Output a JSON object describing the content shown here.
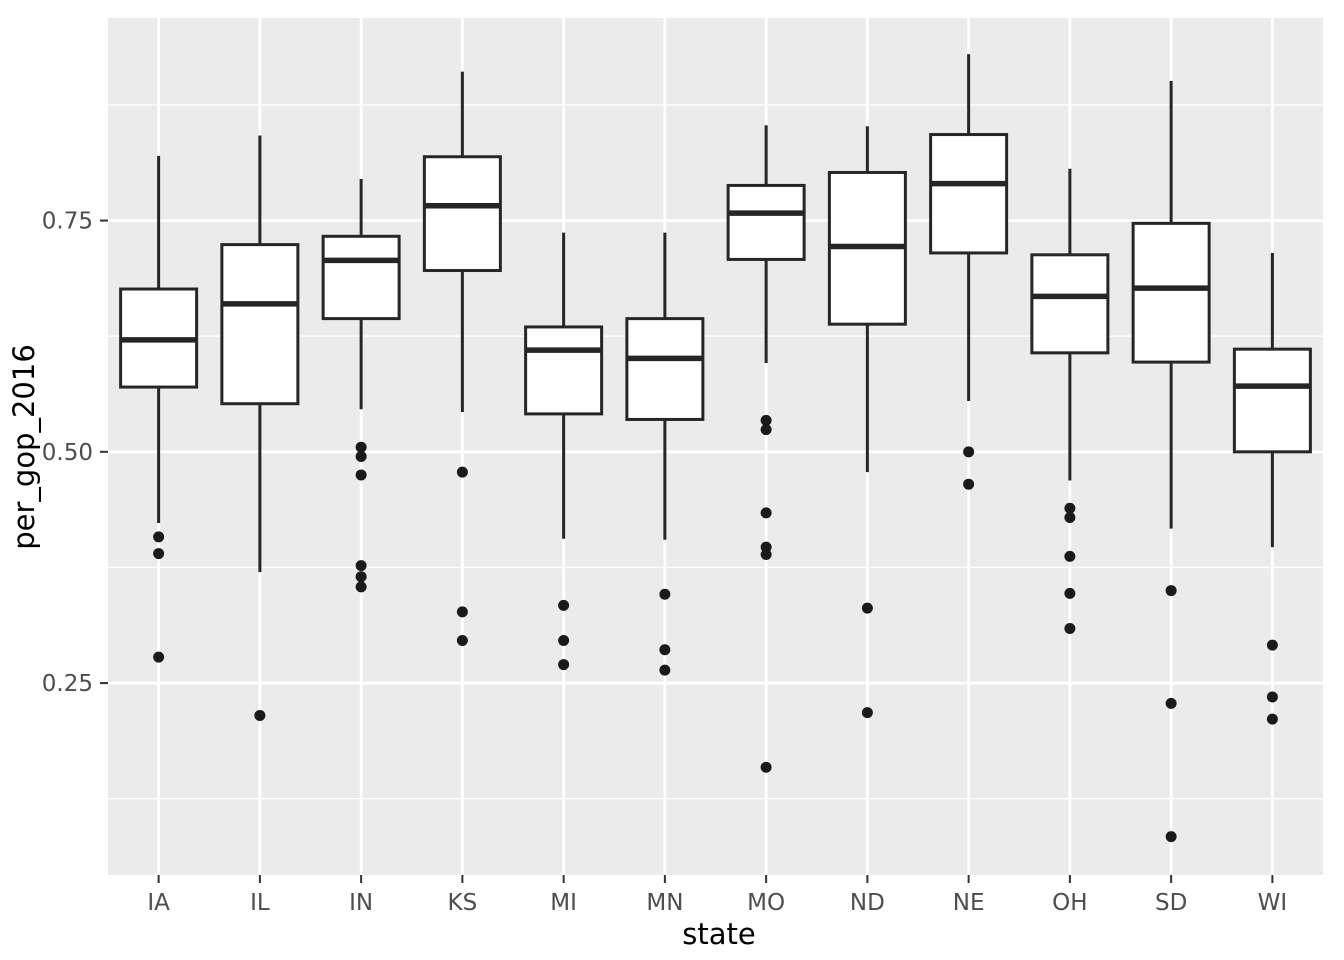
{
  "chart_data": {
    "type": "boxplot",
    "title": "",
    "xlabel": "state",
    "ylabel": "per_gop_2016",
    "categories": [
      "IA",
      "IL",
      "IN",
      "KS",
      "MI",
      "MN",
      "MO",
      "ND",
      "NE",
      "OH",
      "SD",
      "WI"
    ],
    "y_ticks": [
      0.25,
      0.5,
      0.75
    ],
    "y_tick_labels": [
      "0.25",
      "0.50",
      "0.75"
    ],
    "y_minor_ticks": [
      0.125,
      0.375,
      0.625,
      0.875
    ],
    "ylim": [
      0.0425,
      0.969
    ],
    "grid": "white major and minor horizontal lines, white vertical line per category, on gray panel",
    "legend_position": "none",
    "series": [
      {
        "state": "IA",
        "min": 0.423,
        "q1": 0.57,
        "median": 0.621,
        "q3": 0.676,
        "max": 0.82,
        "outliers": [
          0.408,
          0.39,
          0.278
        ]
      },
      {
        "state": "IL",
        "min": 0.37,
        "q1": 0.552,
        "median": 0.66,
        "q3": 0.724,
        "max": 0.842,
        "outliers": [
          0.215
        ]
      },
      {
        "state": "IN",
        "min": 0.546,
        "q1": 0.644,
        "median": 0.707,
        "q3": 0.733,
        "max": 0.795,
        "outliers": [
          0.505,
          0.495,
          0.475,
          0.377,
          0.365,
          0.354
        ]
      },
      {
        "state": "KS",
        "min": 0.543,
        "q1": 0.696,
        "median": 0.766,
        "q3": 0.819,
        "max": 0.911,
        "outliers": [
          0.478,
          0.327,
          0.296
        ]
      },
      {
        "state": "MI",
        "min": 0.406,
        "q1": 0.541,
        "median": 0.61,
        "q3": 0.635,
        "max": 0.737,
        "outliers": [
          0.334,
          0.296,
          0.27
        ]
      },
      {
        "state": "MN",
        "min": 0.405,
        "q1": 0.535,
        "median": 0.601,
        "q3": 0.644,
        "max": 0.737,
        "outliers": [
          0.346,
          0.286,
          0.264
        ]
      },
      {
        "state": "MO",
        "min": 0.596,
        "q1": 0.708,
        "median": 0.758,
        "q3": 0.788,
        "max": 0.853,
        "outliers": [
          0.534,
          0.524,
          0.434,
          0.397,
          0.389,
          0.159
        ]
      },
      {
        "state": "ND",
        "min": 0.478,
        "q1": 0.638,
        "median": 0.722,
        "q3": 0.802,
        "max": 0.852,
        "outliers": [
          0.331,
          0.218
        ]
      },
      {
        "state": "NE",
        "min": 0.555,
        "q1": 0.715,
        "median": 0.79,
        "q3": 0.843,
        "max": 0.93,
        "outliers": [
          0.5,
          0.465
        ]
      },
      {
        "state": "OH",
        "min": 0.469,
        "q1": 0.607,
        "median": 0.668,
        "q3": 0.713,
        "max": 0.806,
        "outliers": [
          0.439,
          0.429,
          0.387,
          0.347,
          0.309
        ]
      },
      {
        "state": "SD",
        "min": 0.417,
        "q1": 0.597,
        "median": 0.677,
        "q3": 0.747,
        "max": 0.901,
        "outliers": [
          0.35,
          0.228,
          0.084
        ]
      },
      {
        "state": "WI",
        "min": 0.397,
        "q1": 0.5,
        "median": 0.571,
        "q3": 0.611,
        "max": 0.715,
        "outliers": [
          0.291,
          0.235,
          0.211
        ]
      }
    ]
  },
  "style": {
    "outer_background": "#FFFFFF",
    "panel_background": "#EBEBEB",
    "grid_color": "#FFFFFF",
    "box_fill": "#FFFFFF",
    "box_stroke": "#262626",
    "outlier_color": "#1A1A1A",
    "tick_color": "#333333",
    "tick_label_color": "#4D4D4D",
    "axis_title_color": "#000000"
  }
}
